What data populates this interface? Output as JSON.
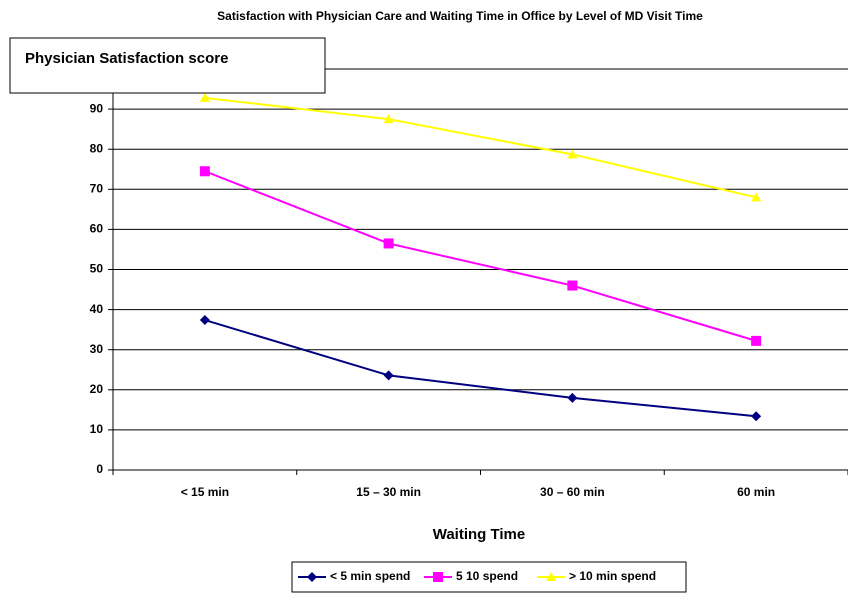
{
  "chart_data": {
    "type": "line",
    "title": "Satisfaction with Physician Care and Waiting Time in Office by Level of  MD Visit Time",
    "y_label": "Physician Satisfaction score",
    "x_label": "Waiting Time",
    "categories": [
      "< 15 min",
      "15 – 30 min",
      "30 – 60 min",
      "60 min"
    ],
    "series": [
      {
        "name": "< 5 min spend",
        "color": "#000080",
        "marker": "diamond",
        "values": [
          37.4,
          23.6,
          18,
          13.4
        ]
      },
      {
        "name": "5 10 spend",
        "color": "#ff00ff",
        "marker": "square",
        "values": [
          74.5,
          56.5,
          46,
          32.2
        ]
      },
      {
        "name": "> 10 min spend",
        "color": "#ffff00",
        "marker": "triangle",
        "values": [
          92.8,
          87.5,
          78.7,
          68
        ]
      }
    ],
    "ylim": [
      0,
      100
    ],
    "yticks": [
      0,
      10,
      20,
      30,
      40,
      50,
      60,
      70,
      80,
      90
    ],
    "grid": true,
    "legend": "bottom"
  }
}
